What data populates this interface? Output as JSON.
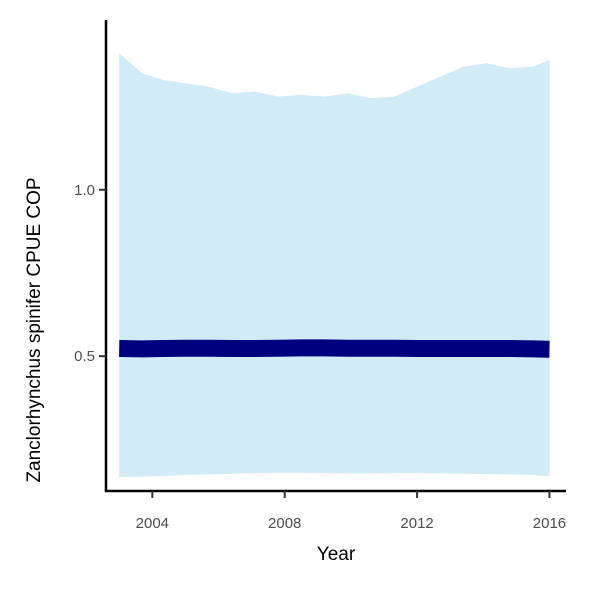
{
  "chart_data": {
    "type": "area",
    "title": "",
    "xlabel": "Year",
    "ylabel": "Zanclorhynchus spinifer  CPUE COP",
    "xlim": [
      2002.6,
      2016.5
    ],
    "ylim": [
      0.095,
      1.51
    ],
    "x_ticks": [
      2004,
      2008,
      2012,
      2016
    ],
    "x_tick_labels": [
      "2004",
      "2008",
      "2012",
      "2016"
    ],
    "y_ticks": [
      0.5,
      1.0
    ],
    "y_tick_labels": [
      "0.5",
      "1.0"
    ],
    "grid": false,
    "legend": "none",
    "x": [
      2003,
      2003.7,
      2004.3,
      2005,
      2005.7,
      2006.4,
      2007.1,
      2007.8,
      2008.5,
      2009.2,
      2009.9,
      2010.6,
      2011.3,
      2012,
      2012.7,
      2013.4,
      2014.1,
      2014.8,
      2015.5,
      2016
    ],
    "series": [
      {
        "role": "confidence-band-upper",
        "values": [
          1.41,
          1.35,
          1.33,
          1.32,
          1.31,
          1.29,
          1.295,
          1.28,
          1.285,
          1.28,
          1.29,
          1.275,
          1.28,
          1.31,
          1.34,
          1.37,
          1.38,
          1.365,
          1.37,
          1.39
        ],
        "color": "#d1ebf7"
      },
      {
        "role": "confidence-band-lower",
        "values": [
          0.137,
          0.138,
          0.14,
          0.143,
          0.145,
          0.147,
          0.149,
          0.15,
          0.15,
          0.149,
          0.148,
          0.148,
          0.149,
          0.149,
          0.148,
          0.147,
          0.146,
          0.145,
          0.143,
          0.139
        ],
        "color": "#d1ebf7"
      },
      {
        "role": "fitted-line",
        "values": [
          0.523,
          0.522,
          0.523,
          0.524,
          0.524,
          0.523,
          0.523,
          0.524,
          0.525,
          0.525,
          0.524,
          0.524,
          0.524,
          0.523,
          0.523,
          0.523,
          0.523,
          0.523,
          0.522,
          0.521
        ],
        "color": "#00007f"
      }
    ]
  }
}
